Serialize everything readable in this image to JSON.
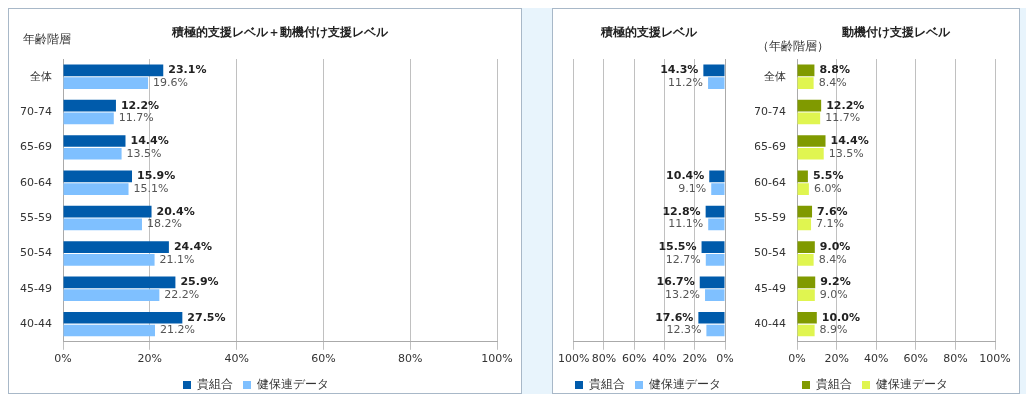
{
  "chart_data": [
    {
      "type": "bar",
      "orientation": "horizontal",
      "title": "積極的支援レベル＋動機付け支援レベル",
      "ylabel": "年齢階層",
      "categories": [
        "全体",
        "70-74",
        "65-69",
        "60-64",
        "55-59",
        "50-54",
        "45-49",
        "40-44"
      ],
      "series": [
        {
          "name": "貴組合",
          "color": "#005bab",
          "values": [
            23.1,
            12.2,
            14.4,
            15.9,
            20.4,
            24.4,
            25.9,
            27.5
          ],
          "value_labels": [
            "23.1%",
            "12.2%",
            "14.4%",
            "15.9%",
            "20.4%",
            "24.4%",
            "25.9%",
            "27.5%"
          ]
        },
        {
          "name": "健保連データ",
          "color": "#7fc0ff",
          "values": [
            19.6,
            11.7,
            13.5,
            15.1,
            18.2,
            21.1,
            22.2,
            21.2
          ],
          "value_labels": [
            "19.6%",
            "11.7%",
            "13.5%",
            "15.1%",
            "18.2%",
            "21.1%",
            "22.2%",
            "21.2%"
          ]
        }
      ],
      "xlim": [
        0,
        100
      ],
      "xticks": [
        {
          "value": 0,
          "label": "0%"
        },
        {
          "value": 20,
          "label": "20%"
        },
        {
          "value": 40,
          "label": "40%"
        },
        {
          "value": 60,
          "label": "60%"
        },
        {
          "value": 80,
          "label": "80%"
        },
        {
          "value": 100,
          "label": "100%"
        }
      ],
      "grid": "x",
      "legend": "bottom"
    },
    {
      "type": "bar",
      "orientation": "horizontal",
      "title": "積極的支援レベル",
      "categories": [
        null,
        null,
        null,
        null,
        null,
        null,
        null,
        null
      ],
      "series": [
        {
          "name": "貴組合",
          "color": "#005bab",
          "values": [
            14.3,
            null,
            null,
            10.4,
            12.8,
            15.5,
            16.7,
            17.6
          ],
          "value_labels": [
            "14.3%",
            null,
            null,
            "10.4%",
            "12.8%",
            "15.5%",
            "16.7%",
            "17.6%"
          ]
        },
        {
          "name": "健保連データ",
          "color": "#7fc0ff",
          "values": [
            11.2,
            null,
            null,
            9.1,
            11.1,
            12.7,
            13.2,
            12.3
          ],
          "value_labels": [
            "11.2%",
            null,
            null,
            "9.1%",
            "11.1%",
            "12.7%",
            "13.2%",
            "12.3%"
          ]
        }
      ],
      "xlim": [
        100,
        0
      ],
      "xticks": [
        {
          "value": 100,
          "label": "100%"
        },
        {
          "value": 80,
          "label": "80%"
        },
        {
          "value": 60,
          "label": "60%"
        },
        {
          "value": 40,
          "label": "40%"
        },
        {
          "value": 20,
          "label": "20%"
        },
        {
          "value": 0,
          "label": "0%"
        }
      ],
      "grid": "x",
      "legend": "bottom"
    },
    {
      "type": "bar",
      "orientation": "horizontal",
      "title": "動機付け支援レベル",
      "ylabel": "（年齢階層）",
      "categories": [
        "全体",
        "70-74",
        "65-69",
        "60-64",
        "55-59",
        "50-54",
        "45-49",
        "40-44"
      ],
      "series": [
        {
          "name": "貴組合",
          "color": "#809a00",
          "values": [
            8.8,
            12.2,
            14.4,
            5.5,
            7.6,
            9.0,
            9.2,
            10.0
          ],
          "value_labels": [
            "8.8%",
            "12.2%",
            "14.4%",
            "5.5%",
            "7.6%",
            "9.0%",
            "9.2%",
            "10.0%"
          ]
        },
        {
          "name": "健保連データ",
          "color": "#e0f550",
          "values": [
            8.4,
            11.7,
            13.5,
            6.0,
            7.1,
            8.4,
            9.0,
            8.9
          ],
          "value_labels": [
            "8.4%",
            "11.7%",
            "13.5%",
            "6.0%",
            "7.1%",
            "8.4%",
            "9.0%",
            "8.9%"
          ]
        }
      ],
      "xlim": [
        0,
        100
      ],
      "xticks": [
        {
          "value": 0,
          "label": "0%"
        },
        {
          "value": 20,
          "label": "20%"
        },
        {
          "value": 40,
          "label": "40%"
        },
        {
          "value": 60,
          "label": "60%"
        },
        {
          "value": 80,
          "label": "80%"
        },
        {
          "value": 100,
          "label": "100%"
        }
      ],
      "grid": "x",
      "legend": "bottom"
    }
  ]
}
